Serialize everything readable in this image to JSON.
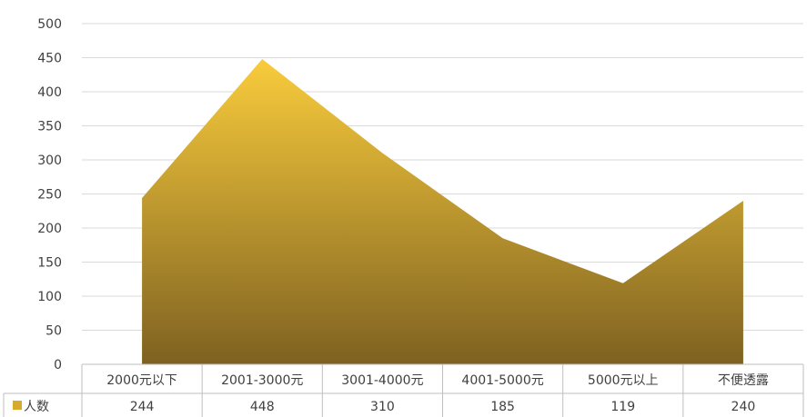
{
  "chart_data": {
    "type": "area",
    "categories": [
      "2000元以下",
      "2001-3000元",
      "3001-4000元",
      "4001-5000元",
      "5000元以上",
      "不便透露"
    ],
    "series": [
      {
        "name": "人数",
        "values": [
          244,
          448,
          310,
          185,
          119,
          240
        ]
      }
    ],
    "y_ticks": [
      "0",
      "50",
      "100",
      "150",
      "200",
      "250",
      "300",
      "350",
      "400",
      "450",
      "500"
    ],
    "ylim": [
      0,
      500
    ],
    "grid": true,
    "legend": "data-table-left",
    "colors": {
      "gradient_top": "#F9CC3C",
      "gradient_bottom": "#7E6121",
      "legend_key": "#D7A92D",
      "grid": "#D9D9D9",
      "table_border": "#BFBFBF"
    }
  }
}
